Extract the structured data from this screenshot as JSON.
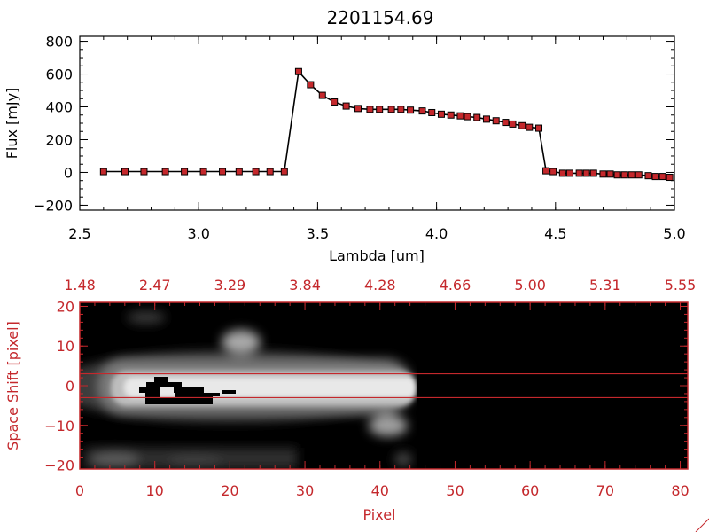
{
  "colors": {
    "axis_top": "#000000",
    "axis_bottom": "#c4282c",
    "marker": "#c4282c"
  },
  "chart_data": [
    {
      "type": "line",
      "title": "2201154.69",
      "xlabel": "Lambda [um]",
      "ylabel": "Flux [mJy]",
      "xlim": [
        2.5,
        5.0
      ],
      "ylim": [
        -230,
        830
      ],
      "xticks": [
        "2.5",
        "3.0",
        "3.5",
        "4.0",
        "4.5",
        "5.0"
      ],
      "xtick_values": [
        2.5,
        3.0,
        3.5,
        4.0,
        4.5,
        5.0
      ],
      "yticks": [
        "800",
        "600",
        "400",
        "200",
        "0",
        "−200"
      ],
      "ytick_values": [
        800,
        600,
        400,
        200,
        0,
        -200
      ],
      "marker": "square",
      "series": [
        {
          "x": [
            2.6,
            2.69,
            2.77,
            2.86,
            2.94,
            3.02,
            3.1,
            3.17,
            3.24,
            3.3,
            3.36,
            3.42,
            3.47,
            3.52,
            3.57,
            3.62,
            3.67,
            3.72,
            3.76,
            3.81,
            3.85,
            3.89,
            3.94,
            3.98,
            4.02,
            4.06,
            4.1,
            4.13,
            4.17,
            4.21,
            4.25,
            4.29,
            4.32,
            4.36,
            4.39,
            4.43,
            4.46,
            4.49,
            4.53,
            4.56,
            4.6,
            4.63,
            4.66,
            4.7,
            4.73,
            4.76,
            4.79,
            4.82,
            4.85,
            4.89,
            4.92,
            4.95,
            4.98
          ],
          "y": [
            5,
            5,
            5,
            5,
            5,
            5,
            5,
            5,
            5,
            5,
            5,
            615,
            535,
            470,
            430,
            405,
            390,
            385,
            385,
            385,
            385,
            380,
            375,
            365,
            355,
            350,
            345,
            340,
            335,
            325,
            315,
            305,
            295,
            285,
            275,
            270,
            10,
            5,
            -5,
            -5,
            -5,
            -5,
            -5,
            -10,
            -10,
            -15,
            -15,
            -15,
            -15,
            -20,
            -25,
            -25,
            -30
          ]
        }
      ]
    },
    {
      "type": "heatmap",
      "xlabel": "Pixel",
      "ylabel": "Space Shift [pixel]",
      "xlim": [
        0,
        81
      ],
      "ylim": [
        -21,
        21
      ],
      "xticks": [
        "0",
        "10",
        "20",
        "30",
        "40",
        "50",
        "60",
        "70",
        "80"
      ],
      "xtick_values": [
        0,
        10,
        20,
        30,
        40,
        50,
        60,
        70,
        80
      ],
      "yticks": [
        "20",
        "10",
        "0",
        "−10",
        "−20"
      ],
      "ytick_values": [
        20,
        10,
        0,
        -10,
        -20
      ],
      "top_axis_ticks": [
        "1.48",
        "2.47",
        "3.29",
        "3.84",
        "4.28",
        "4.66",
        "5.00",
        "5.31",
        "5.55"
      ],
      "hlines": [
        3,
        -3
      ],
      "colormap": "grayscale"
    }
  ]
}
